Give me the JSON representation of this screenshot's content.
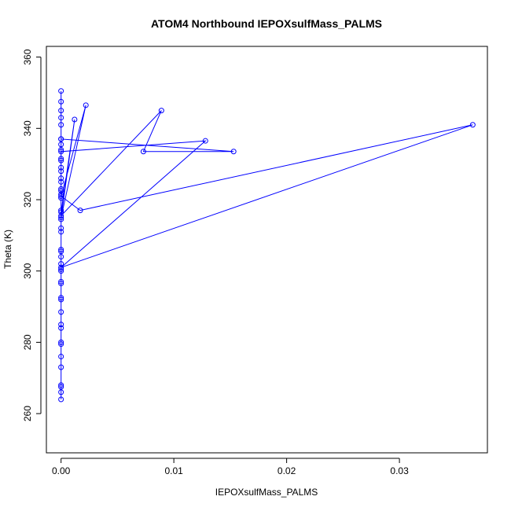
{
  "chart_data": {
    "type": "scatter",
    "title": "ATOM4 Northbound IEPOXsulfMass_PALMS",
    "xlabel": "IEPOXsulfMass_PALMS",
    "ylabel": "Theta (K)",
    "xlim": [
      -0.0013,
      0.0378
    ],
    "ylim": [
      249,
      363
    ],
    "x_ticks": [
      0,
      0.01,
      0.02,
      0.03
    ],
    "x_tick_labels": [
      "0.00",
      "0.01",
      "0.02",
      "0.03"
    ],
    "y_ticks": [
      260,
      280,
      300,
      320,
      340,
      360
    ],
    "y_tick_labels": [
      "260",
      "280",
      "300",
      "320",
      "340",
      "360"
    ],
    "grid": false,
    "legend": "none",
    "colors": {
      "series": "#0000ff",
      "axis": "#000000"
    },
    "markers": "open-circle-with-connecting-lines",
    "series": [
      {
        "x": [
          0,
          0,
          0,
          0,
          0,
          0,
          0,
          0,
          0,
          0,
          0,
          0,
          0,
          0,
          0,
          0,
          0,
          0,
          0,
          0,
          0,
          0,
          0,
          0,
          0,
          0.0089,
          0.0073,
          0.0153,
          0,
          0,
          0.0128,
          0,
          0.0365,
          0.0017,
          0,
          0.0022,
          0,
          0.0012,
          0,
          0,
          0,
          0,
          0,
          0,
          0,
          0,
          0,
          0,
          0,
          0,
          0,
          0,
          0,
          0,
          0,
          0,
          0,
          0
        ],
        "y": [
          264,
          266,
          267.5,
          268,
          273,
          276,
          279.5,
          280,
          284,
          285,
          288.5,
          292,
          292.5,
          296.5,
          297,
          300,
          300.5,
          302,
          304,
          305.5,
          306,
          311,
          312,
          314.5,
          315.5,
          345,
          333.5,
          333.5,
          337,
          333.5,
          336.5,
          301,
          341,
          317,
          321,
          346.5,
          315,
          342.5,
          316.5,
          317,
          320.5,
          321.5,
          322.5,
          323,
          325,
          326,
          328,
          329,
          331,
          331.5,
          334,
          335.5,
          337,
          341,
          343,
          345,
          350.5,
          347.5
        ]
      }
    ]
  }
}
